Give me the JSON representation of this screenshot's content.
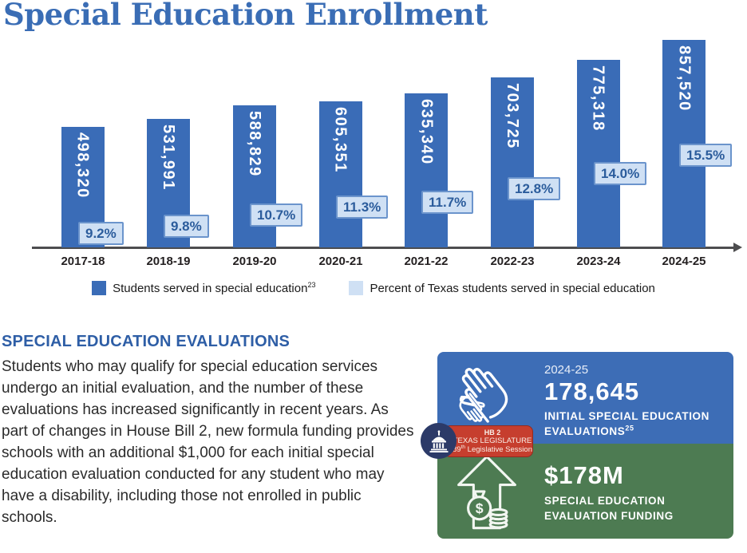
{
  "page": {
    "title": "Special Education Enrollment"
  },
  "chart_data": {
    "type": "bar",
    "title": "Special Education Enrollment",
    "categories": [
      "2017-18",
      "2018-19",
      "2019-20",
      "2020-21",
      "2021-22",
      "2022-23",
      "2023-24",
      "2024-25"
    ],
    "series": [
      {
        "name": "Students served in special education",
        "footnote": "23",
        "values": [
          498320,
          531991,
          588829,
          605351,
          635340,
          703725,
          775318,
          857520
        ],
        "color": "#3a6cb7",
        "label_color": "#ffffff"
      },
      {
        "name": "Percent of Texas students served in special education",
        "unit": "%",
        "values": [
          9.2,
          9.8,
          10.7,
          11.3,
          11.7,
          12.8,
          14.0,
          15.5
        ],
        "color": "#cfe0f4",
        "text_color": "#2b5c9c"
      }
    ],
    "xlabel": "",
    "ylabel": "",
    "grid": false,
    "legend_position": "bottom-center",
    "axis_color": "#4d4d4f"
  },
  "section": {
    "heading": "SPECIAL EDUCATION EVALUATIONS",
    "body": "Students who may qualify for special education services undergo an initial evaluation, and the number of these evaluations has increased significantly in recent years. As part of changes in House Bill 2, new formula funding provides schools with an additional $1,000 for each initial special education evaluation conducted for any student who may have a disability, including those not enrolled in public schools."
  },
  "infographic": {
    "evaluations": {
      "year": "2024-25",
      "count": "178,645",
      "label_line1": "INITIAL SPECIAL EDUCATION",
      "label_line2": "EVALUATIONS",
      "footnote": "25",
      "bg_color": "#3d6db6",
      "icon": "hands-icon"
    },
    "funding": {
      "amount": "$178M",
      "label_line1": "SPECIAL EDUCATION",
      "label_line2": "EVALUATION FUNDING",
      "bg_color": "#4d7b52",
      "icon": "arrow-up-money-icon"
    },
    "badge": {
      "bill": "HB 2",
      "line1": "TEXAS LEGISLATURE",
      "session_number": "89",
      "session_ordinal": "th",
      "session_rest": "Legislative Session",
      "pill_color": "#c63e2e",
      "circle_color": "#2c3a68",
      "icon": "capitol-icon"
    }
  }
}
